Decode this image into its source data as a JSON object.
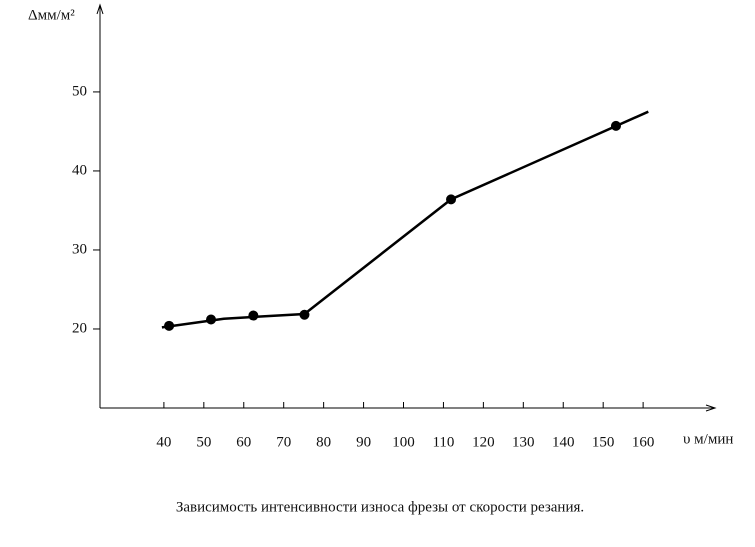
{
  "chart_data": {
    "type": "line",
    "y_label": "Δмм/м²",
    "x_label": "υ м/мин",
    "caption": "Зависимость  интенсивности износа фрезы от скорости резания.",
    "xlim": [
      24,
      178
    ],
    "ylim": [
      10,
      61
    ],
    "xticks": [
      40,
      50,
      60,
      70,
      80,
      90,
      100,
      110,
      120,
      130,
      140,
      150,
      160
    ],
    "yticks": [
      20,
      30,
      40,
      50
    ],
    "series": [
      {
        "style": "line",
        "color": "#000000",
        "x": [
          39.5,
          55,
          75.2,
          111.9,
          161.3
        ],
        "values": [
          20.2,
          21.3,
          21.9,
          36.4,
          47.5
        ]
      },
      {
        "style": "markers",
        "color": "#000000",
        "x": [
          41.3,
          51.8,
          62.4,
          75.2,
          111.9,
          153.2
        ],
        "values": [
          20.4,
          21.2,
          21.7,
          21.8,
          36.4,
          45.7
        ]
      }
    ]
  }
}
